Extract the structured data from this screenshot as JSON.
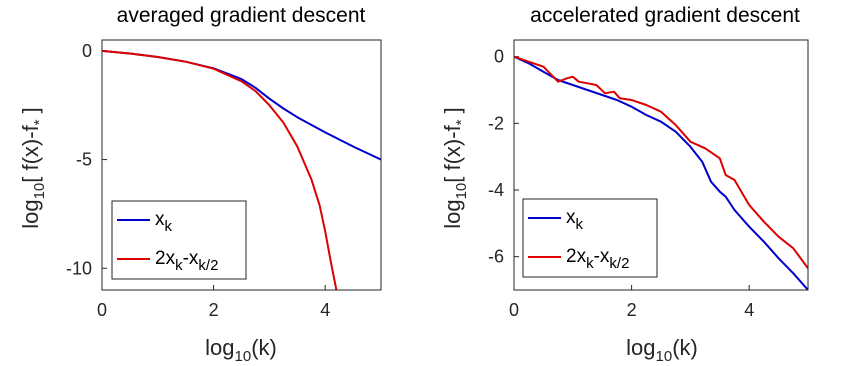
{
  "chart_data": [
    {
      "type": "line",
      "title": "averaged gradient descent",
      "xlabel": {
        "base": "log",
        "sub": "10",
        "rest": "(k)"
      },
      "ylabel": {
        "base": "log",
        "sub": "10",
        "rest": "[ f(x)-f",
        "star": "*",
        "end": " ]"
      },
      "xlim": [
        0,
        5
      ],
      "ylim": [
        -11,
        0.5
      ],
      "xticks": [
        0,
        2,
        4
      ],
      "yticks": [
        0,
        -5,
        -10
      ],
      "ytick_labels": [
        "0",
        "-5",
        "-10"
      ],
      "grid": false,
      "legend_position": "bottom-left",
      "series": [
        {
          "name": {
            "main": "x",
            "sub": "k"
          },
          "color": "#0000cc",
          "x": [
            0,
            0.5,
            1,
            1.5,
            2,
            2.25,
            2.5,
            2.75,
            3,
            3.25,
            3.5,
            4,
            4.5,
            5
          ],
          "y": [
            0,
            -0.12,
            -0.28,
            -0.5,
            -0.8,
            -1.05,
            -1.3,
            -1.7,
            -2.2,
            -2.65,
            -3.05,
            -3.75,
            -4.4,
            -5.0
          ]
        },
        {
          "name": {
            "main": "2x",
            "sub": "k",
            "mid": "-x",
            "sub2": "k/2"
          },
          "color": "#dd0000",
          "x": [
            0,
            0.5,
            1,
            1.5,
            2,
            2.5,
            2.75,
            3,
            3.25,
            3.5,
            3.75,
            3.9,
            4.0,
            4.1,
            4.2
          ],
          "y": [
            0,
            -0.12,
            -0.28,
            -0.5,
            -0.82,
            -1.4,
            -1.85,
            -2.5,
            -3.3,
            -4.4,
            -5.9,
            -7.1,
            -8.3,
            -9.7,
            -11.0
          ]
        }
      ]
    },
    {
      "type": "line",
      "title": "accelerated gradient descent",
      "xlabel": {
        "base": "log",
        "sub": "10",
        "rest": "(k)"
      },
      "ylabel": {
        "base": "log",
        "sub": "10",
        "rest": "[ f(x)-f",
        "star": "*",
        "end": " ]"
      },
      "xlim": [
        0,
        5
      ],
      "ylim": [
        -7,
        0.5
      ],
      "xticks": [
        0,
        2,
        4
      ],
      "yticks": [
        0,
        -2,
        -4,
        -6
      ],
      "ytick_labels": [
        "0",
        "-2",
        "-4",
        "-6"
      ],
      "grid": false,
      "legend_position": "bottom-left",
      "series": [
        {
          "name": {
            "main": "x",
            "sub": "k"
          },
          "color": "#0000cc",
          "x": [
            0,
            0.25,
            0.5,
            0.75,
            1,
            1.25,
            1.5,
            1.75,
            2,
            2.25,
            2.5,
            2.75,
            3,
            3.2,
            3.35,
            3.5,
            3.6,
            3.75,
            4,
            4.25,
            4.5,
            4.75,
            5
          ],
          "y": [
            0,
            -0.2,
            -0.45,
            -0.7,
            -0.85,
            -1.0,
            -1.15,
            -1.3,
            -1.5,
            -1.75,
            -1.95,
            -2.25,
            -2.7,
            -3.15,
            -3.75,
            -4.05,
            -4.2,
            -4.6,
            -5.1,
            -5.55,
            -6.05,
            -6.5,
            -7.0
          ]
        },
        {
          "name": {
            "main": "2x",
            "sub": "k",
            "mid": "-x",
            "sub2": "k/2"
          },
          "color": "#dd0000",
          "x": [
            0,
            0.25,
            0.5,
            0.75,
            0.9,
            1.0,
            1.1,
            1.25,
            1.4,
            1.55,
            1.7,
            1.8,
            2,
            2.25,
            2.5,
            2.75,
            3,
            3.25,
            3.5,
            3.6,
            3.75,
            3.9,
            4,
            4.25,
            4.5,
            4.75,
            5
          ],
          "y": [
            0,
            -0.15,
            -0.3,
            -0.75,
            -0.65,
            -0.6,
            -0.75,
            -0.8,
            -0.85,
            -1.1,
            -1.05,
            -1.25,
            -1.3,
            -1.45,
            -1.65,
            -2.05,
            -2.55,
            -2.75,
            -3.05,
            -3.55,
            -3.7,
            -4.15,
            -4.45,
            -4.95,
            -5.4,
            -5.75,
            -6.35
          ]
        }
      ]
    }
  ]
}
